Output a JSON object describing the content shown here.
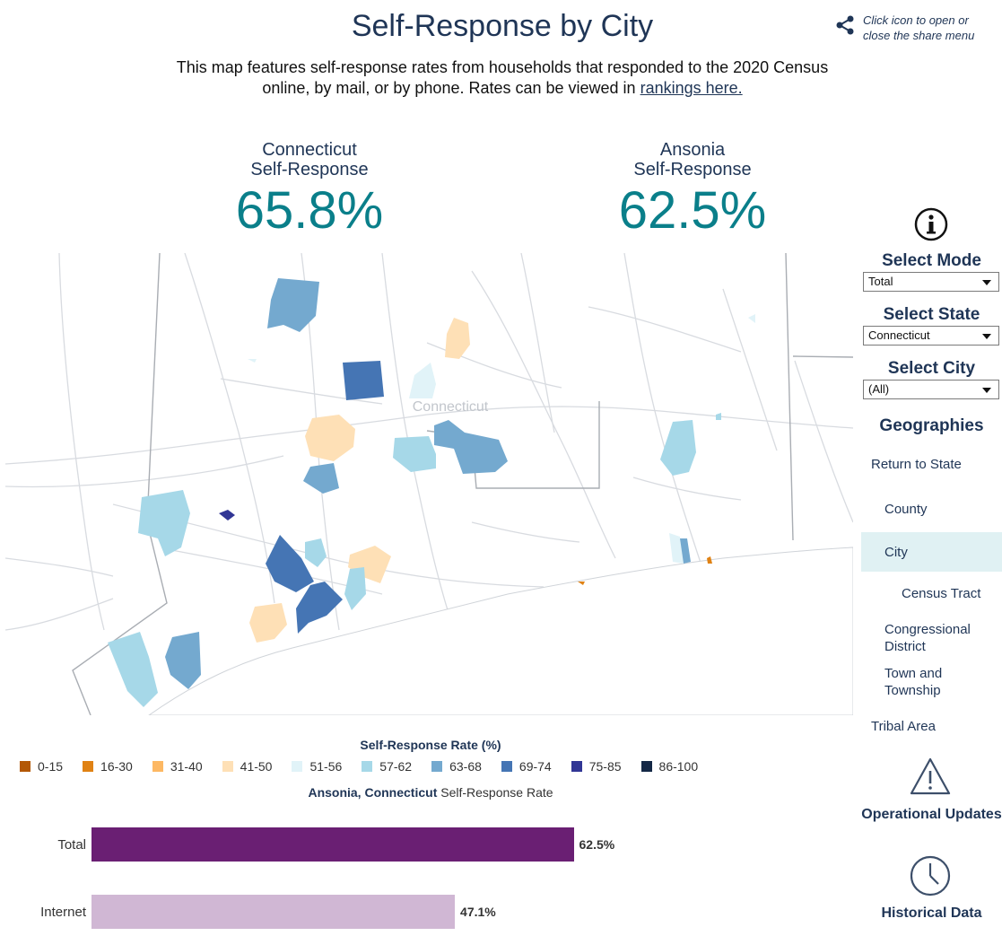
{
  "header": {
    "title": "Self-Response by City",
    "share_hint": "Click icon to open or close the share menu",
    "subtitle_text": "This map features self-response rates from households that responded to the 2020 Census online, by mail, or by phone. Rates can be viewed in ",
    "subtitle_link": "rankings here."
  },
  "stats": {
    "state": {
      "name_line1": "Connecticut",
      "name_line2": "Self-Response",
      "value": "65.8%"
    },
    "city": {
      "name_line1": "Ansonia",
      "name_line2": "Self-Response",
      "value": "62.5%"
    }
  },
  "map": {
    "state_label": "Connecticut"
  },
  "sidebar": {
    "mode_label": "Select Mode",
    "mode_value": "Total",
    "state_label": "Select State",
    "state_value": "Connecticut",
    "city_label": "Select City",
    "city_value": "(All)",
    "geographies_title": "Geographies",
    "geo_items": [
      "Return to State",
      "County",
      "City",
      "Census Tract",
      "Congressional District",
      "Town and Township",
      "Tribal Area"
    ],
    "active_geo": "City",
    "operational_label": "Operational Updates",
    "historical_label": "Historical Data"
  },
  "legend": {
    "title": "Self-Response Rate (%)",
    "items": [
      {
        "label": "0-15",
        "color": "#b35806"
      },
      {
        "label": "16-30",
        "color": "#e08214"
      },
      {
        "label": "31-40",
        "color": "#fdb863"
      },
      {
        "label": "41-50",
        "color": "#fee0b6"
      },
      {
        "label": "51-56",
        "color": "#e1f3f8"
      },
      {
        "label": "57-62",
        "color": "#a6d8e8"
      },
      {
        "label": "63-68",
        "color": "#74a9cf"
      },
      {
        "label": "69-74",
        "color": "#4575b4"
      },
      {
        "label": "75-85",
        "color": "#313695"
      },
      {
        "label": "86-100",
        "color": "#142846"
      }
    ]
  },
  "bar_chart": {
    "title_bold": "Ansonia, Connecticut",
    "title_rest": " Self-Response Rate",
    "rows": [
      {
        "label": "Total",
        "value": 62.5,
        "value_label": "62.5%",
        "color": "#6a1f73"
      },
      {
        "label": "Internet",
        "value": 47.1,
        "value_label": "47.1%",
        "color": "#d0b7d4"
      }
    ],
    "xmax": 100
  }
}
